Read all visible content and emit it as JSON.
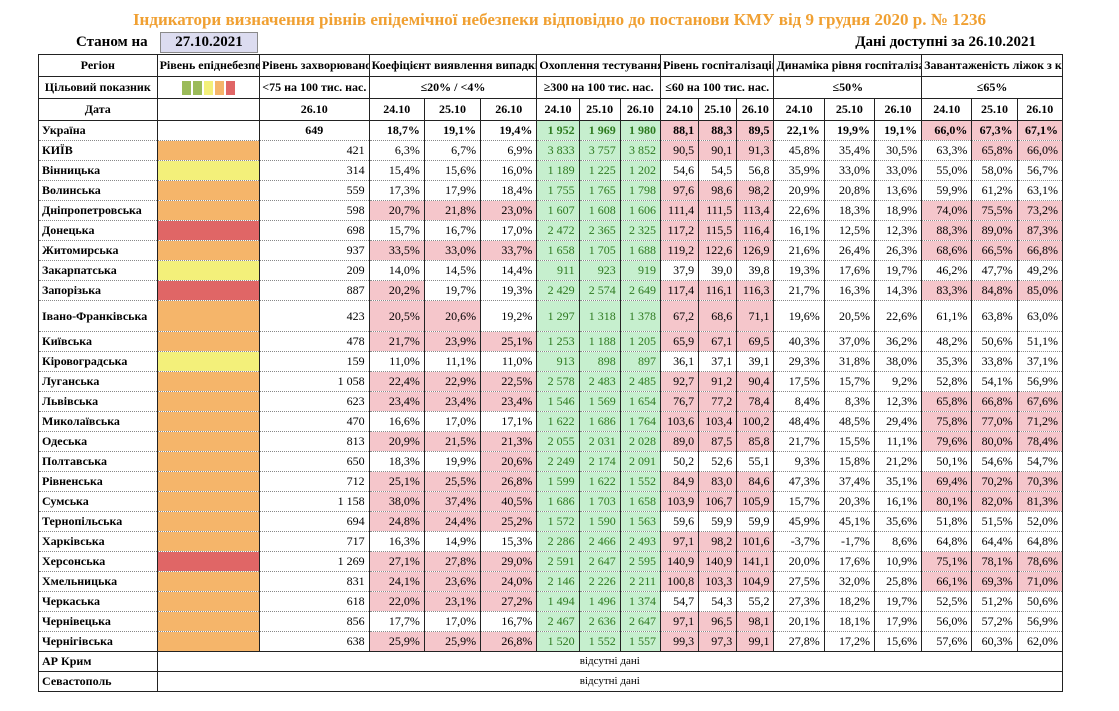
{
  "title": "Індикатори визначення рівнів епідемічної небезпеки відповідно до постанови КМУ від 9 грудня 2020 р. № 1236",
  "as_of_label": "Станом на",
  "as_of_date": "27.10.2021",
  "data_available": "Дані доступні за  26.10.2021",
  "headers": {
    "region": "Регіон",
    "target": "Цільовий показник",
    "date": "Дата",
    "danger_level": "Рівень епіднебезпеки",
    "incidence": "Рівень захворюваності",
    "detection": "Коефіцієнт виявлення випадків інфікування",
    "testing": "Охоплення тестуванням",
    "hosp": "Рівень госпіталізацій",
    "hosp_dyn": "Динаміка рівня госпіталізації",
    "oxygen": "Завантаженість ліжок з киснем"
  },
  "targets": {
    "incidence": "<75 на 100 тис. нас.",
    "detection": "≤20% / <4%",
    "testing": "≥300 на 100 тис. нас.",
    "hosp": "≤60 на 100 тис. нас.",
    "hosp_dyn": "≤50%",
    "oxygen": "≤65%"
  },
  "legend_colors": [
    "#9bbb59",
    "#9bbb59",
    "#f3f07a",
    "#f5b56a",
    "#e06666"
  ],
  "dates": {
    "incidence": "26.10",
    "three": [
      "24.10",
      "25.10",
      "26.10"
    ]
  },
  "rows": [
    {
      "region": "Україна",
      "level": "",
      "inc": "649",
      "det": [
        "18,7%",
        "19,1%",
        "19,4%"
      ],
      "test": [
        "1 952",
        "1 969",
        "1 980"
      ],
      "hosp": [
        "88,1",
        "88,3",
        "89,5"
      ],
      "dyn": [
        "22,1%",
        "19,9%",
        "19,1%"
      ],
      "oxy": [
        "66,0%",
        "67,3%",
        "67,1%"
      ]
    },
    {
      "region": "КИЇВ",
      "level": "orange",
      "inc": "421",
      "det": [
        "6,3%",
        "6,7%",
        "6,9%"
      ],
      "test": [
        "3 833",
        "3 757",
        "3 852"
      ],
      "hosp": [
        "90,5",
        "90,1",
        "91,3"
      ],
      "dyn": [
        "45,8%",
        "35,4%",
        "30,5%"
      ],
      "oxy": [
        "63,3%",
        "65,8%",
        "66,0%"
      ]
    },
    {
      "region": "Вінницька",
      "level": "yellow",
      "inc": "314",
      "det": [
        "15,4%",
        "15,6%",
        "16,0%"
      ],
      "test": [
        "1 189",
        "1 225",
        "1 202"
      ],
      "hosp": [
        "54,6",
        "54,5",
        "56,8"
      ],
      "dyn": [
        "35,9%",
        "33,0%",
        "33,0%"
      ],
      "oxy": [
        "55,0%",
        "58,0%",
        "56,7%"
      ]
    },
    {
      "region": "Волинська",
      "level": "orange",
      "inc": "559",
      "det": [
        "17,3%",
        "17,9%",
        "18,4%"
      ],
      "test": [
        "1 755",
        "1 765",
        "1 798"
      ],
      "hosp": [
        "97,6",
        "98,6",
        "98,2"
      ],
      "dyn": [
        "20,9%",
        "20,8%",
        "13,6%"
      ],
      "oxy": [
        "59,9%",
        "61,2%",
        "63,1%"
      ]
    },
    {
      "region": "Дніпропетровська",
      "level": "orange",
      "inc": "598",
      "det": [
        "20,7%",
        "21,8%",
        "23,0%"
      ],
      "test": [
        "1 607",
        "1 608",
        "1 606"
      ],
      "hosp": [
        "111,4",
        "111,5",
        "113,4"
      ],
      "dyn": [
        "22,6%",
        "18,3%",
        "18,9%"
      ],
      "oxy": [
        "74,0%",
        "75,5%",
        "73,2%"
      ]
    },
    {
      "region": "Донецька",
      "level": "red",
      "inc": "698",
      "det": [
        "15,7%",
        "16,7%",
        "17,0%"
      ],
      "test": [
        "2 472",
        "2 365",
        "2 325"
      ],
      "hosp": [
        "117,2",
        "115,5",
        "116,4"
      ],
      "dyn": [
        "16,1%",
        "12,5%",
        "12,3%"
      ],
      "oxy": [
        "88,3%",
        "89,0%",
        "87,3%"
      ]
    },
    {
      "region": "Житомирська",
      "level": "orange",
      "inc": "937",
      "det": [
        "33,5%",
        "33,0%",
        "33,7%"
      ],
      "test": [
        "1 658",
        "1 705",
        "1 688"
      ],
      "hosp": [
        "119,2",
        "122,6",
        "126,9"
      ],
      "dyn": [
        "21,6%",
        "26,4%",
        "26,3%"
      ],
      "oxy": [
        "68,6%",
        "66,5%",
        "66,8%"
      ]
    },
    {
      "region": "Закарпатська",
      "level": "yellow",
      "inc": "209",
      "det": [
        "14,0%",
        "14,5%",
        "14,4%"
      ],
      "test": [
        "911",
        "923",
        "919"
      ],
      "hosp": [
        "37,9",
        "39,0",
        "39,8"
      ],
      "dyn": [
        "19,3%",
        "17,6%",
        "19,7%"
      ],
      "oxy": [
        "46,2%",
        "47,7%",
        "49,2%"
      ]
    },
    {
      "region": "Запорізька",
      "level": "red",
      "inc": "887",
      "det": [
        "20,2%",
        "19,7%",
        "19,3%"
      ],
      "test": [
        "2 429",
        "2 574",
        "2 649"
      ],
      "hosp": [
        "117,4",
        "116,1",
        "116,3"
      ],
      "dyn": [
        "21,7%",
        "16,3%",
        "14,3%"
      ],
      "oxy": [
        "83,3%",
        "84,8%",
        "85,0%"
      ]
    },
    {
      "region": "Івано-Франківська",
      "level": "orange",
      "inc": "423",
      "det": [
        "20,5%",
        "20,6%",
        "19,2%"
      ],
      "test": [
        "1 297",
        "1 318",
        "1 378"
      ],
      "hosp": [
        "67,2",
        "68,6",
        "71,1"
      ],
      "dyn": [
        "19,6%",
        "20,5%",
        "22,6%"
      ],
      "oxy": [
        "61,1%",
        "63,8%",
        "63,0%"
      ]
    },
    {
      "region": "Київська",
      "level": "orange",
      "inc": "478",
      "det": [
        "21,7%",
        "23,9%",
        "25,1%"
      ],
      "test": [
        "1 253",
        "1 188",
        "1 205"
      ],
      "hosp": [
        "65,9",
        "67,1",
        "69,5"
      ],
      "dyn": [
        "40,3%",
        "37,0%",
        "36,2%"
      ],
      "oxy": [
        "48,2%",
        "50,6%",
        "51,1%"
      ]
    },
    {
      "region": "Кіровоградська",
      "level": "yellow",
      "inc": "159",
      "det": [
        "11,0%",
        "11,1%",
        "11,0%"
      ],
      "test": [
        "913",
        "898",
        "897"
      ],
      "hosp": [
        "36,1",
        "37,1",
        "39,1"
      ],
      "dyn": [
        "29,3%",
        "31,8%",
        "38,0%"
      ],
      "oxy": [
        "35,3%",
        "33,8%",
        "37,1%"
      ]
    },
    {
      "region": "Луганська",
      "level": "orange",
      "inc": "1 058",
      "det": [
        "22,4%",
        "22,9%",
        "22,5%"
      ],
      "test": [
        "2 578",
        "2 483",
        "2 485"
      ],
      "hosp": [
        "92,7",
        "91,2",
        "90,4"
      ],
      "dyn": [
        "17,5%",
        "15,7%",
        "9,2%"
      ],
      "oxy": [
        "52,8%",
        "54,1%",
        "56,9%"
      ]
    },
    {
      "region": "Львівська",
      "level": "orange",
      "inc": "623",
      "det": [
        "23,4%",
        "23,4%",
        "23,4%"
      ],
      "test": [
        "1 546",
        "1 569",
        "1 654"
      ],
      "hosp": [
        "76,7",
        "77,2",
        "78,4"
      ],
      "dyn": [
        "8,4%",
        "8,3%",
        "12,3%"
      ],
      "oxy": [
        "65,8%",
        "66,8%",
        "67,6%"
      ]
    },
    {
      "region": "Миколаївська",
      "level": "orange",
      "inc": "470",
      "det": [
        "16,6%",
        "17,0%",
        "17,1%"
      ],
      "test": [
        "1 622",
        "1 686",
        "1 764"
      ],
      "hosp": [
        "103,6",
        "103,4",
        "100,2"
      ],
      "dyn": [
        "48,4%",
        "48,5%",
        "29,4%"
      ],
      "oxy": [
        "75,8%",
        "77,0%",
        "71,2%"
      ]
    },
    {
      "region": "Одеська",
      "level": "orange",
      "inc": "813",
      "det": [
        "20,9%",
        "21,5%",
        "21,3%"
      ],
      "test": [
        "2 055",
        "2 031",
        "2 028"
      ],
      "hosp": [
        "89,0",
        "87,5",
        "85,8"
      ],
      "dyn": [
        "21,7%",
        "15,5%",
        "11,1%"
      ],
      "oxy": [
        "79,6%",
        "80,0%",
        "78,4%"
      ]
    },
    {
      "region": "Полтавська",
      "level": "orange",
      "inc": "650",
      "det": [
        "18,3%",
        "19,9%",
        "20,6%"
      ],
      "test": [
        "2 249",
        "2 174",
        "2 091"
      ],
      "hosp": [
        "50,2",
        "52,6",
        "55,1"
      ],
      "dyn": [
        "9,3%",
        "15,8%",
        "21,2%"
      ],
      "oxy": [
        "50,1%",
        "54,6%",
        "54,7%"
      ]
    },
    {
      "region": "Рівненська",
      "level": "orange",
      "inc": "712",
      "det": [
        "25,1%",
        "25,5%",
        "26,8%"
      ],
      "test": [
        "1 599",
        "1 622",
        "1 552"
      ],
      "hosp": [
        "84,9",
        "83,0",
        "84,6"
      ],
      "dyn": [
        "47,3%",
        "37,4%",
        "35,1%"
      ],
      "oxy": [
        "69,4%",
        "70,2%",
        "70,3%"
      ]
    },
    {
      "region": "Сумська",
      "level": "orange",
      "inc": "1 158",
      "det": [
        "38,0%",
        "37,4%",
        "40,5%"
      ],
      "test": [
        "1 686",
        "1 703",
        "1 658"
      ],
      "hosp": [
        "103,9",
        "106,7",
        "105,9"
      ],
      "dyn": [
        "15,7%",
        "20,3%",
        "16,1%"
      ],
      "oxy": [
        "80,1%",
        "82,0%",
        "81,3%"
      ]
    },
    {
      "region": "Тернопільська",
      "level": "orange",
      "inc": "694",
      "det": [
        "24,8%",
        "24,4%",
        "25,2%"
      ],
      "test": [
        "1 572",
        "1 590",
        "1 563"
      ],
      "hosp": [
        "59,6",
        "59,9",
        "59,9"
      ],
      "dyn": [
        "45,9%",
        "45,1%",
        "35,6%"
      ],
      "oxy": [
        "51,8%",
        "51,5%",
        "52,0%"
      ]
    },
    {
      "region": "Харківська",
      "level": "orange",
      "inc": "717",
      "det": [
        "16,3%",
        "14,9%",
        "15,3%"
      ],
      "test": [
        "2 286",
        "2 466",
        "2 493"
      ],
      "hosp": [
        "97,1",
        "98,2",
        "101,6"
      ],
      "dyn": [
        "-3,7%",
        "-1,7%",
        "8,6%"
      ],
      "oxy": [
        "64,8%",
        "64,4%",
        "64,8%"
      ]
    },
    {
      "region": "Херсонська",
      "level": "red",
      "inc": "1 269",
      "det": [
        "27,1%",
        "27,8%",
        "29,0%"
      ],
      "test": [
        "2 591",
        "2 647",
        "2 595"
      ],
      "hosp": [
        "140,9",
        "140,9",
        "141,1"
      ],
      "dyn": [
        "20,0%",
        "17,6%",
        "10,9%"
      ],
      "oxy": [
        "75,1%",
        "78,1%",
        "78,6%"
      ]
    },
    {
      "region": "Хмельницька",
      "level": "orange",
      "inc": "831",
      "det": [
        "24,1%",
        "23,6%",
        "24,0%"
      ],
      "test": [
        "2 146",
        "2 226",
        "2 211"
      ],
      "hosp": [
        "100,8",
        "103,3",
        "104,9"
      ],
      "dyn": [
        "27,5%",
        "32,0%",
        "25,8%"
      ],
      "oxy": [
        "66,1%",
        "69,3%",
        "71,0%"
      ]
    },
    {
      "region": "Черкаська",
      "level": "orange",
      "inc": "618",
      "det": [
        "22,0%",
        "23,1%",
        "27,2%"
      ],
      "test": [
        "1 494",
        "1 496",
        "1 374"
      ],
      "hosp": [
        "54,7",
        "54,3",
        "55,2"
      ],
      "dyn": [
        "27,3%",
        "18,2%",
        "19,7%"
      ],
      "oxy": [
        "52,5%",
        "51,2%",
        "50,6%"
      ]
    },
    {
      "region": "Чернівецька",
      "level": "orange",
      "inc": "856",
      "det": [
        "17,7%",
        "17,0%",
        "16,7%"
      ],
      "test": [
        "2 467",
        "2 636",
        "2 647"
      ],
      "hosp": [
        "97,1",
        "96,5",
        "98,1"
      ],
      "dyn": [
        "20,1%",
        "18,1%",
        "17,9%"
      ],
      "oxy": [
        "56,0%",
        "57,2%",
        "56,9%"
      ]
    },
    {
      "region": "Чернігівська",
      "level": "orange",
      "inc": "638",
      "det": [
        "25,9%",
        "25,9%",
        "26,8%"
      ],
      "test": [
        "1 520",
        "1 552",
        "1 557"
      ],
      "hosp": [
        "99,3",
        "97,3",
        "99,1"
      ],
      "dyn": [
        "27,8%",
        "17,2%",
        "15,6%"
      ],
      "oxy": [
        "57,6%",
        "60,3%",
        "62,0%"
      ]
    }
  ],
  "missing": [
    {
      "region": "АР Крим",
      "note": "відсутні дані"
    },
    {
      "region": "Севастополь",
      "note": "відсутні дані"
    }
  ],
  "colors": {
    "orange": "#f5b56a",
    "yellow": "#f3f07a",
    "red": "#e06666",
    "pink": "#f5c6cb",
    "green": "#c6efce"
  }
}
